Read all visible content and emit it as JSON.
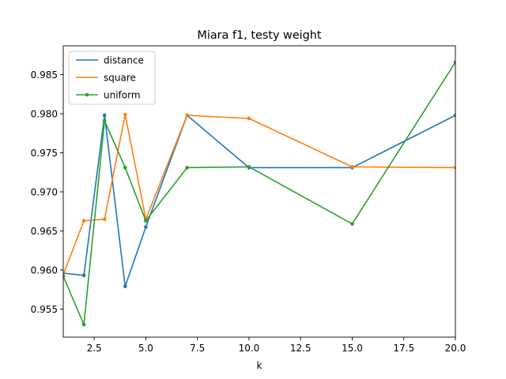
{
  "chart_data": {
    "type": "line",
    "title": "Miara f1, testy weight",
    "xlabel": "k",
    "ylabel": "",
    "xlim": [
      1,
      20
    ],
    "ylim": [
      0.9514,
      0.9887
    ],
    "xticks": [
      "2.5",
      "5.0",
      "7.5",
      "10.0",
      "12.5",
      "15.0",
      "17.5",
      "20.0"
    ],
    "xtick_values": [
      2.5,
      5.0,
      7.5,
      10.0,
      12.5,
      15.0,
      17.5,
      20.0
    ],
    "yticks": [
      "0.955",
      "0.960",
      "0.965",
      "0.970",
      "0.975",
      "0.980",
      "0.985"
    ],
    "ytick_values": [
      0.955,
      0.96,
      0.965,
      0.97,
      0.975,
      0.98,
      0.985
    ],
    "grid": false,
    "legend_position": "top-left",
    "x": [
      1,
      2,
      3,
      4,
      5,
      7,
      10,
      15,
      20
    ],
    "series": [
      {
        "name": "distance",
        "color": "#1f77b4",
        "values": [
          0.9596,
          0.9593,
          0.9798,
          0.9579,
          0.9655,
          0.9798,
          0.9731,
          0.9731,
          0.9798
        ]
      },
      {
        "name": "square",
        "color": "#ff7f0e",
        "values": [
          0.9594,
          0.9663,
          0.9665,
          0.9799,
          0.9665,
          0.9798,
          0.9794,
          0.9732,
          0.9731
        ]
      },
      {
        "name": "uniform",
        "color": "#2ca02c",
        "values": [
          0.9592,
          0.953,
          0.9791,
          0.9731,
          0.9663,
          0.9731,
          0.9732,
          0.9659,
          0.9866
        ]
      }
    ]
  }
}
